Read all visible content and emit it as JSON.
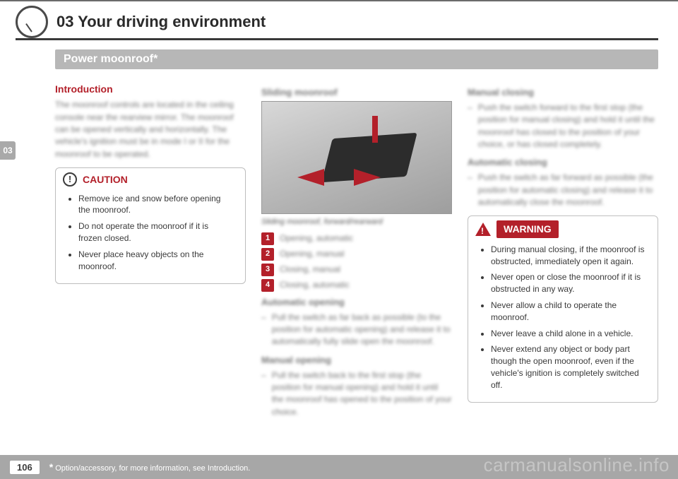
{
  "chapter": {
    "number": "03",
    "title": "03 Your driving environment"
  },
  "section_title": "Power moonroof*",
  "side_tab": "03",
  "col1": {
    "intro_head": "Introduction",
    "intro_head_color": "#b3202a",
    "intro_text": "The moonroof controls are located in the ceiling console near the rearview mirror. The moonroof can be opened vertically and horizontally. The vehicle's ignition must be in mode I or II for the moonroof to be operated.",
    "caution": {
      "label": "CAUTION",
      "items": [
        "Remove ice and snow before opening the moonroof.",
        "Do not operate the moonroof if it is frozen closed.",
        "Never place heavy objects on the moonroof."
      ]
    }
  },
  "col2": {
    "head": "Sliding moonroof",
    "caption": "Sliding moonroof, forward/rearward",
    "legend": [
      {
        "n": "1",
        "label": "Opening, automatic"
      },
      {
        "n": "2",
        "label": "Opening, manual"
      },
      {
        "n": "3",
        "label": "Closing, manual"
      },
      {
        "n": "4",
        "label": "Closing, automatic"
      }
    ],
    "auto_open_head": "Automatic opening",
    "auto_open_text": "Pull the switch as far back as possible (to the position for automatic opening) and release it to automatically fully slide open the moonroof.",
    "manual_open_head": "Manual opening",
    "manual_open_text": "Pull the switch back to the first stop (the position for manual opening) and hold it until the moonroof has opened to the position of your choice."
  },
  "col3": {
    "manual_close_head": "Manual closing",
    "manual_close_text": "Push the switch forward to the first stop (the position for manual closing) and hold it until the moonroof has closed to the position of your choice, or has closed completely.",
    "auto_close_head": "Automatic closing",
    "auto_close_text": "Push the switch as far forward as possible (the position for automatic closing) and release it to automatically close the moonroof.",
    "warning": {
      "label": "WARNING",
      "items": [
        "During manual closing, if the moonroof is obstructed, immediately open it again.",
        "Never open or close the moonroof if it is obstructed in any way.",
        "Never allow a child to operate the moonroof.",
        "Never leave a child alone in a vehicle.",
        "Never extend any object or body part though the open moonroof, even if the vehicle's ignition is completely switched off."
      ]
    }
  },
  "footer": {
    "page": "106",
    "footnote_star": "*",
    "footnote_text": " Option/accessory, for more information, see Introduction."
  },
  "watermark": "carmanualsonline.info",
  "colors": {
    "accent_red": "#b3202a",
    "banner_gray": "#b7b7b7",
    "footer_gray": "#a7a7a7"
  }
}
